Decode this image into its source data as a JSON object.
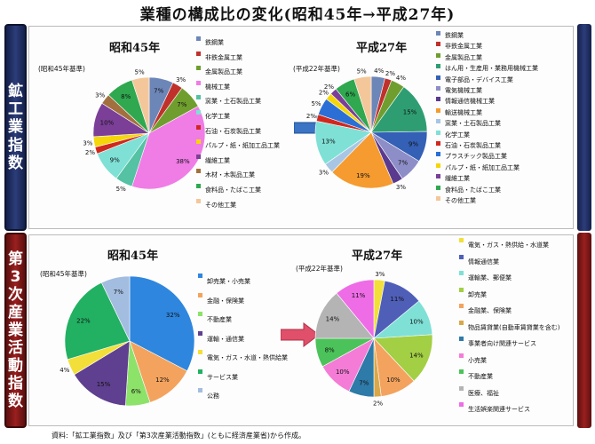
{
  "title": "業種の構成比の変化(昭和45年→平成27年)",
  "side_top": "鉱工業指数",
  "side_bottom": "第3次産業活動指数",
  "source": "資料:「鉱工業指数」及び「第3次産業活動指数」(ともに経済産業省)から作成。",
  "colors": {
    "top_scroll": "#1f2b5e",
    "bottom_scroll": "#7a1414",
    "arrow_top": "#3b74c4",
    "arrow_bottom": "#e0506a"
  },
  "chart_data": [
    {
      "type": "pie",
      "title": "昭和45年",
      "note": "(昭和45年基準)",
      "legend_placement": "right",
      "slices": [
        {
          "name": "鉄鋼業",
          "value": 7,
          "label": "7%",
          "color": "#6d86b8"
        },
        {
          "name": "非鉄金属工業",
          "value": 3,
          "label": "3%",
          "color": "#c0312b"
        },
        {
          "name": "金属製品工業",
          "value": 7,
          "label": "7%",
          "color": "#6f9e2e"
        },
        {
          "name": "機械工業",
          "value": 38,
          "label": "38%",
          "color": "#f07ce6"
        },
        {
          "name": "窯業・土石製品工業",
          "value": 5,
          "label": "5%",
          "color": "#54c2a3"
        },
        {
          "name": "化学工業",
          "value": 9,
          "label": "9%",
          "color": "#7fe0d6"
        },
        {
          "name": "石油・石炭製品工業",
          "value": 2,
          "label": "2%",
          "color": "#d1281e"
        },
        {
          "name": "パルプ・紙・紙加工品工業",
          "value": 3,
          "label": "3%",
          "color": "#f5d60a"
        },
        {
          "name": "繊維工業",
          "value": 10,
          "label": "10%",
          "color": "#7b3f98"
        },
        {
          "name": "木材・木製品工業",
          "value": 3,
          "label": "3%",
          "color": "#a2703f"
        },
        {
          "name": "食料品・たばこ工業",
          "value": 8,
          "label": "8%",
          "color": "#2fa84f"
        },
        {
          "name": "その他工業",
          "value": 5,
          "label": "5%",
          "color": "#f4c79a"
        }
      ]
    },
    {
      "type": "pie",
      "title": "平成27年",
      "note": "(平成22年基準)",
      "legend_placement": "right",
      "slices": [
        {
          "name": "鉄鋼業",
          "value": 4,
          "label": "4%",
          "color": "#6d86b8"
        },
        {
          "name": "非鉄金属工業",
          "value": 2,
          "label": "2%",
          "color": "#c0312b"
        },
        {
          "name": "金属製品工業",
          "value": 4,
          "label": "4%",
          "color": "#6f9e2e"
        },
        {
          "name": "はん用・生産用・業務用機械工業",
          "value": 15,
          "label": "15%",
          "color": "#2e9e72"
        },
        {
          "name": "電子部品・デバイス工業",
          "value": 9,
          "label": "9%",
          "color": "#3460b5"
        },
        {
          "name": "電気機械工業",
          "value": 7,
          "label": "7%",
          "color": "#8d8ec8"
        },
        {
          "name": "情報通信機械工業",
          "value": 3,
          "label": "3%",
          "color": "#5a3a8e"
        },
        {
          "name": "輸送機械工業",
          "value": 19,
          "label": "19%",
          "color": "#f59b2f"
        },
        {
          "name": "窯業・土石製品工業",
          "value": 3,
          "label": "3%",
          "color": "#a8c6e4"
        },
        {
          "name": "化学工業",
          "value": 13,
          "label": "13%",
          "color": "#7fe0d6"
        },
        {
          "name": "石油・石炭製品工業",
          "value": 2,
          "label": "2%",
          "color": "#d1281e"
        },
        {
          "name": "プラスチック製品工業",
          "value": 5,
          "label": "5%",
          "color": "#2b6fd6"
        },
        {
          "name": "パルプ・紙・紙加工品工業",
          "value": 2,
          "label": "2%",
          "color": "#f5d60a"
        },
        {
          "name": "繊維工業",
          "value": 2,
          "label": "2%",
          "color": "#7b3f98"
        },
        {
          "name": "食料品・たばこ工業",
          "value": 6,
          "label": "6%",
          "color": "#2fa84f"
        },
        {
          "name": "その他工業",
          "value": 5,
          "label": "5%",
          "color": "#f4c79a"
        }
      ]
    },
    {
      "type": "pie",
      "title": "昭和45年",
      "note": "(昭和45年基準)",
      "legend_placement": "right",
      "slices": [
        {
          "name": "卸売業・小売業",
          "value": 32,
          "label": "32%",
          "color": "#2e86de"
        },
        {
          "name": "金融・保険業",
          "value": 12,
          "label": "12%",
          "color": "#f3a35e"
        },
        {
          "name": "不動産業",
          "value": 6,
          "label": "6%",
          "color": "#8de26a"
        },
        {
          "name": "運輸・通信業",
          "value": 15,
          "label": "15%",
          "color": "#5f3f8f"
        },
        {
          "name": "電気・ガス・水道・熱供給業",
          "value": 4,
          "label": "4%",
          "color": "#f2df3a"
        },
        {
          "name": "サービス業",
          "value": 22,
          "label": "22%",
          "color": "#22b062"
        },
        {
          "name": "公務",
          "value": 7,
          "label": "7%",
          "color": "#a3bde0"
        }
      ]
    },
    {
      "type": "pie",
      "title": "平成27年",
      "note": "(平成22年基準)",
      "legend_placement": "right",
      "slices": [
        {
          "name": "電気・ガス・熱供給・水道業",
          "value": 3,
          "label": "3%",
          "color": "#f2df3a"
        },
        {
          "name": "情報通信業",
          "value": 11,
          "label": "11%",
          "color": "#4f5fb8"
        },
        {
          "name": "運輸業、郵便業",
          "value": 10,
          "label": "10%",
          "color": "#7fe0d6"
        },
        {
          "name": "卸売業",
          "value": 14,
          "label": "14%",
          "color": "#a2cf44"
        },
        {
          "name": "金融業、保険業",
          "value": 10,
          "label": "10%",
          "color": "#f3a35e"
        },
        {
          "name": "物品賃貸業(自動車賃貸業を含む)",
          "value": 2,
          "label": "2%",
          "color": "#d9a84a"
        },
        {
          "name": "事業者向け関連サービス",
          "value": 7,
          "label": "7%",
          "color": "#2e7aa8"
        },
        {
          "name": "小売業",
          "value": 10,
          "label": "10%",
          "color": "#f47cd6"
        },
        {
          "name": "不動産業",
          "value": 8,
          "label": "8%",
          "color": "#4cc35a"
        },
        {
          "name": "医療、福祉",
          "value": 14,
          "label": "14%",
          "color": "#b4b4b4"
        },
        {
          "name": "生活娯楽関連サービス",
          "value": 11,
          "label": "11%",
          "color": "#ee6ce6"
        }
      ]
    }
  ]
}
